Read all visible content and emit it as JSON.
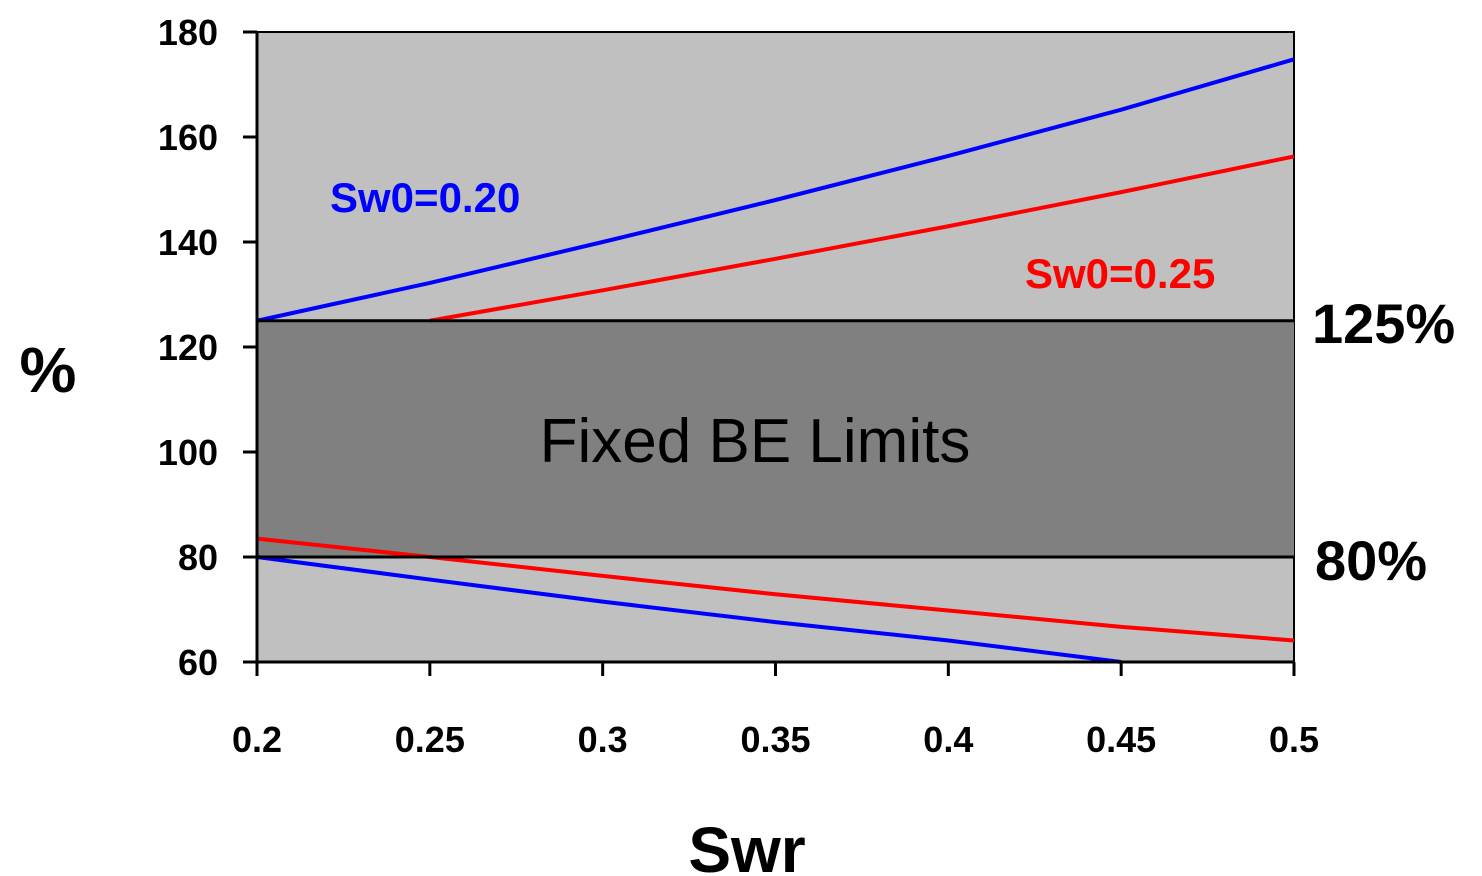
{
  "chart_data": {
    "type": "line",
    "title": "",
    "xlabel": "Swr",
    "ylabel": "%",
    "xlim": [
      0.2,
      0.5
    ],
    "ylim": [
      60,
      180
    ],
    "x_ticks": [
      "0.2",
      "0.25",
      "0.3",
      "0.35",
      "0.4",
      "0.45",
      "0.5"
    ],
    "y_ticks": [
      "60",
      "80",
      "100",
      "120",
      "140",
      "160",
      "180"
    ],
    "grid": false,
    "legend": "none",
    "series": [
      {
        "name": "Sw0=0.20",
        "color": "#0000ff",
        "upper": {
          "x": [
            0.2,
            0.25,
            0.3,
            0.35,
            0.4,
            0.45,
            0.5
          ],
          "y": [
            125,
            132.2,
            140,
            148,
            156.4,
            165.2,
            174.8
          ]
        },
        "lower": {
          "x": [
            0.2,
            0.25,
            0.3,
            0.35,
            0.4,
            0.45
          ],
          "y": [
            80,
            75.7,
            71.5,
            67.6,
            64.1,
            60
          ]
        }
      },
      {
        "name": "Sw0=0.25",
        "color": "#ff0000",
        "upper": {
          "x": [
            0.25,
            0.3,
            0.35,
            0.4,
            0.45,
            0.5
          ],
          "y": [
            125,
            130.8,
            136.8,
            143,
            149.5,
            156.3
          ]
        },
        "lower": {
          "x": [
            0.2,
            0.25,
            0.3,
            0.35,
            0.4,
            0.45,
            0.5
          ],
          "y": [
            83.5,
            80,
            76.4,
            72.9,
            69.8,
            66.7,
            64.1
          ]
        }
      }
    ],
    "band": {
      "label": "Fixed BE Limits",
      "low": 80,
      "high": 125,
      "color": "#808080"
    },
    "limit_labels": {
      "upper": "125%",
      "lower": "80%"
    },
    "colors": {
      "plot_background": "#c0c0c0",
      "band": "#808080"
    }
  }
}
